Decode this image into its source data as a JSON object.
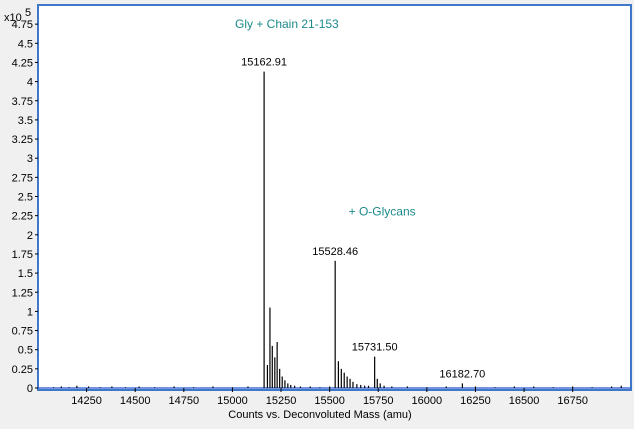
{
  "chart_data": {
    "type": "line",
    "title": "",
    "xlabel": "Counts vs. Deconvoluted Mass (amu)",
    "ylabel": "",
    "y_scale_label": "x10",
    "y_scale_exponent": "5",
    "xlim": [
      14000,
      17050
    ],
    "ylim": [
      0,
      5
    ],
    "x_ticks": [
      14250,
      14500,
      14750,
      15000,
      15250,
      15500,
      15750,
      16000,
      16250,
      16500,
      16750
    ],
    "y_ticks": [
      0,
      0.25,
      0.5,
      0.75,
      1,
      1.25,
      1.5,
      1.75,
      2,
      2.25,
      2.5,
      2.75,
      3,
      3.25,
      3.5,
      3.75,
      4,
      4.25,
      4.5,
      4.75
    ],
    "y_tick_labels": [
      "0",
      "0.25",
      "0.5",
      "0.75",
      "1",
      "1.25",
      "1.5",
      "1.75",
      "2",
      "2.25",
      "2.5",
      "2.75",
      "3",
      "3.25",
      "3.5",
      "3.75",
      "4",
      "4.25",
      "4.5",
      "4.75"
    ],
    "grid": false,
    "series": [
      {
        "peaks": [
          [
            14080,
            0.01
          ],
          [
            14120,
            0.02
          ],
          [
            14160,
            0.01
          ],
          [
            14200,
            0.03
          ],
          [
            14260,
            0.02
          ],
          [
            14320,
            0.01
          ],
          [
            14380,
            0.02
          ],
          [
            14450,
            0.01
          ],
          [
            14520,
            0.02
          ],
          [
            14600,
            0.01
          ],
          [
            14700,
            0.02
          ],
          [
            14800,
            0.01
          ],
          [
            14900,
            0.02
          ],
          [
            15000,
            0.01
          ],
          [
            15080,
            0.02
          ],
          [
            15162.91,
            4.13
          ],
          [
            15180,
            0.3
          ],
          [
            15193,
            1.05
          ],
          [
            15205,
            0.55
          ],
          [
            15218,
            0.4
          ],
          [
            15230,
            0.6
          ],
          [
            15243,
            0.25
          ],
          [
            15256,
            0.15
          ],
          [
            15270,
            0.1
          ],
          [
            15285,
            0.06
          ],
          [
            15300,
            0.04
          ],
          [
            15320,
            0.03
          ],
          [
            15350,
            0.02
          ],
          [
            15400,
            0.02
          ],
          [
            15450,
            0.01
          ],
          [
            15500,
            0.02
          ],
          [
            15528.46,
            1.66
          ],
          [
            15545,
            0.35
          ],
          [
            15560,
            0.25
          ],
          [
            15575,
            0.2
          ],
          [
            15590,
            0.15
          ],
          [
            15605,
            0.12
          ],
          [
            15620,
            0.08
          ],
          [
            15640,
            0.05
          ],
          [
            15660,
            0.04
          ],
          [
            15680,
            0.03
          ],
          [
            15700,
            0.03
          ],
          [
            15731.5,
            0.41
          ],
          [
            15745,
            0.12
          ],
          [
            15760,
            0.06
          ],
          [
            15780,
            0.03
          ],
          [
            15820,
            0.02
          ],
          [
            15900,
            0.02
          ],
          [
            16000,
            0.01
          ],
          [
            16100,
            0.02
          ],
          [
            16182.7,
            0.06
          ],
          [
            16250,
            0.02
          ],
          [
            16350,
            0.01
          ],
          [
            16450,
            0.02
          ],
          [
            16550,
            0.02
          ],
          [
            16650,
            0.01
          ],
          [
            16750,
            0.02
          ],
          [
            16850,
            0.01
          ],
          [
            16950,
            0.02
          ],
          [
            17000,
            0.03
          ]
        ]
      }
    ],
    "annotations": [
      {
        "text": "Gly + Chain 21-153",
        "x": 15280,
        "y": 4.7
      },
      {
        "text": "+ O-Glycans",
        "x": 15770,
        "y": 2.25
      },
      {
        "text": "15162.91",
        "x": 15162.91,
        "y": 4.13
      },
      {
        "text": "15528.46",
        "x": 15528.46,
        "y": 1.66
      },
      {
        "text": "15731.50",
        "x": 15731.5,
        "y": 0.41
      },
      {
        "text": "16182.70",
        "x": 16182.7,
        "y": 0.06
      }
    ]
  }
}
